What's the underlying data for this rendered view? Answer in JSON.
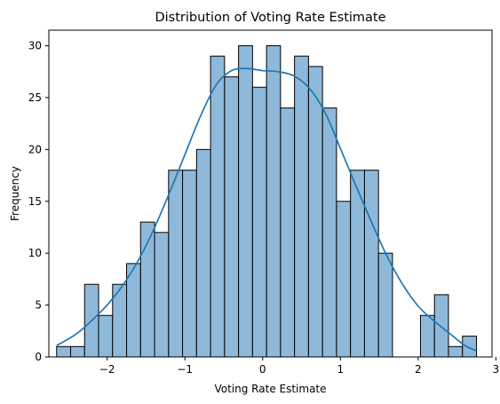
{
  "chart_data": {
    "type": "bar",
    "subtype": "histogram with KDE line",
    "title": "Distribution of Voting Rate Estimate",
    "xlabel": "Voting Rate Estimate",
    "ylabel": "Frequency",
    "xlim": [
      -2.75,
      2.95
    ],
    "ylim": [
      0,
      31.5
    ],
    "xticks": [
      -2,
      -1,
      0,
      1,
      2,
      3
    ],
    "xtick_labels": [
      "−2",
      "−1",
      "0",
      "1",
      "2",
      "3"
    ],
    "yticks": [
      0,
      5,
      10,
      15,
      20,
      25,
      30
    ],
    "ytick_labels": [
      "0",
      "5",
      "10",
      "15",
      "20",
      "25",
      "30"
    ],
    "bin_start": -2.65,
    "bin_width": 0.18,
    "counts": [
      1,
      1,
      7,
      4,
      7,
      9,
      13,
      12,
      18,
      18,
      20,
      29,
      27,
      30,
      26,
      30,
      24,
      29,
      28,
      24,
      15,
      18,
      18,
      10,
      0,
      0,
      4,
      6,
      1,
      2
    ],
    "kde": {
      "x": [
        -2.65,
        -2.4,
        -2.2,
        -2.0,
        -1.8,
        -1.6,
        -1.4,
        -1.2,
        -1.0,
        -0.8,
        -0.6,
        -0.4,
        -0.2,
        0.0,
        0.2,
        0.4,
        0.6,
        0.8,
        1.0,
        1.2,
        1.4,
        1.6,
        1.8,
        2.0,
        2.2,
        2.4,
        2.6,
        2.75
      ],
      "y": [
        1.1,
        2.2,
        3.5,
        5.0,
        6.9,
        9.3,
        12.3,
        15.8,
        19.5,
        23.2,
        26.2,
        27.6,
        27.8,
        27.6,
        27.5,
        27.1,
        25.9,
        23.6,
        20.1,
        16.5,
        13.0,
        9.7,
        7.0,
        4.9,
        3.5,
        2.3,
        1.1,
        0.6
      ]
    },
    "bar_color": "#8fb9da",
    "bar_edge_color": "#000000",
    "line_color": "#1f77b4",
    "grid": false,
    "legend": "none"
  }
}
